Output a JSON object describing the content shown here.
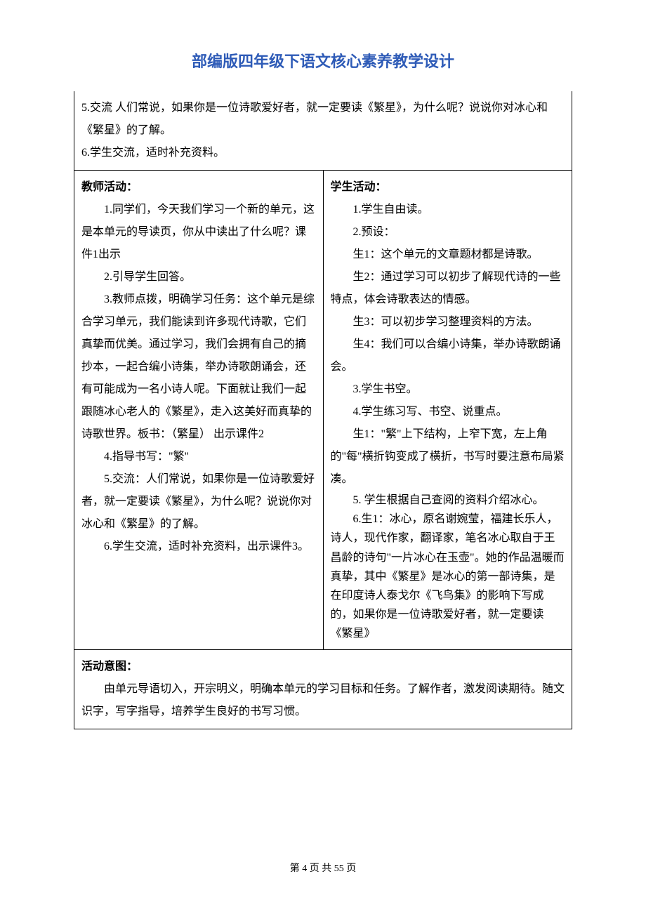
{
  "title": {
    "text": "部编版四年级下语文核心素养教学设计",
    "color": "#2e5bb7",
    "fontsize": 22
  },
  "body": {
    "fontsize": 16,
    "color": "#000000"
  },
  "intro": {
    "line1": "5.交流 人们常说，如果你是一位诗歌爱好者，就一定要读《繁星》，为什么呢？说说你对冰心和《繁星》的了解。",
    "line2": "6.学生交流，适时补充资料。"
  },
  "teacher": {
    "heading": "教师活动：",
    "p1": "1.同学们，今天我们学习一个新的单元，这是本单元的导读页，你从中读出了什么呢？课件1出示",
    "p2": "2.引导学生回答。",
    "p3": "3.教师点拨，明确学习任务：这个单元是综合学习单元，我们能读到许多现代诗歌，它们真挚而优美。通过学习，我们会拥有自己的摘抄本，一起合编小诗集，举办诗歌朗诵会，还有可能成为一名小诗人呢。下面就让我们一起跟随冰心老人的《繁星》，走入这美好而真挚的诗歌世界。板书：（繁星） 出示课件2",
    "p4": "4.指导书写：\"繁\"",
    "p5": "5.交流：人们常说，如果你是一位诗歌爱好者，就一定要读《繁星》，为什么呢？说说你对冰心和《繁星》的了解。",
    "p6": "6.学生交流，适时补充资料，出示课件3。"
  },
  "student": {
    "heading": "学生活动：",
    "p1": "1.学生自由读。",
    "p2": "2.预设：",
    "p3": "生1：这个单元的文章题材都是诗歌。",
    "p4": "生2：通过学习可以初步了解现代诗的一些特点，体会诗歌表达的情感。",
    "p5": "生3：可以初步学习整理资料的方法。",
    "p6": "生4：我们可以合编小诗集，举办诗歌朗诵会。",
    "p7": "3.学生书空。",
    "p8": "4.学生练习写、书空、说重点。",
    "p9": "生1：\"繁\"上下结构，上窄下宽，左上角的\"每\"横折钩变成了横折，书写时要注意布局紧凑。",
    "p10": "5. 学生根据自己查阅的资料介绍冰心。",
    "p11": "6.生1：冰心，原名谢婉莹，福建长乐人，诗人，现代作家，翻译家，笔名冰心取自于王昌龄的诗句\"一片冰心在玉壶\"。她的作品温暖而真挚，其中《繁星》是冰心的第一部诗集，是在印度诗人泰戈尔《飞鸟集》的影响下写成的，如果你是一位诗歌爱好者，就一定要读《繁星》"
  },
  "intent": {
    "heading": "活动意图：",
    "body": "由单元导语切入，开宗明义，明确本单元的学习目标和任务。了解作者，激发阅读期待。随文识字，写字指导，培养学生良好的书写习惯。"
  },
  "footer": {
    "text": "第 4 页 共 55 页",
    "fontsize": 14
  }
}
